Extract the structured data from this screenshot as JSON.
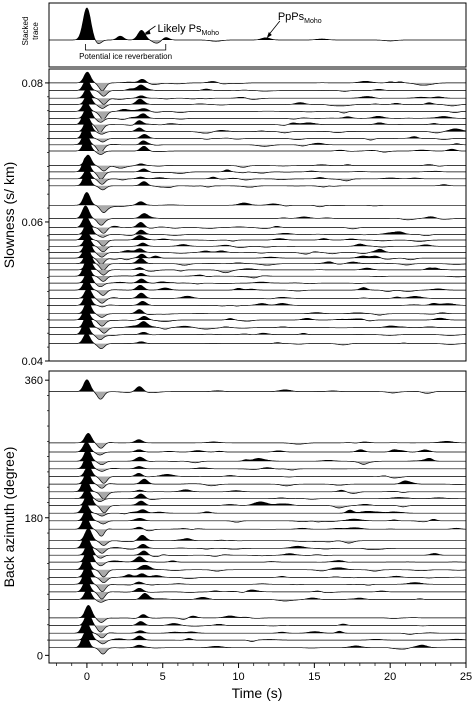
{
  "chart_data": [
    {
      "type": "line",
      "panel": "stacked",
      "ylabel_lines": [
        "Stacked",
        "trace"
      ],
      "xlim": [
        -2.5,
        25
      ],
      "annotations": {
        "likely_ps": {
          "text": "Likely Ps",
          "sub": "Moho",
          "x": 3.6
        },
        "ppps": {
          "text": "PpPs",
          "sub": "Moho",
          "x": 11.8
        },
        "ice": {
          "text": "Potential ice reverberation",
          "x_start": -0.1,
          "x_end": 5.2
        }
      },
      "wiggles": [
        {
          "t": 0.0,
          "a": 1.0,
          "w": 0.35
        },
        {
          "t": 0.75,
          "a": -0.12,
          "w": 0.3
        },
        {
          "t": 2.2,
          "a": 0.12,
          "w": 0.3
        },
        {
          "t": 3.6,
          "a": 0.3,
          "w": 0.33
        },
        {
          "t": 4.6,
          "a": -0.1,
          "w": 0.35
        },
        {
          "t": 5.2,
          "a": 0.08,
          "w": 0.3
        },
        {
          "t": 8.5,
          "a": -0.04,
          "w": 0.5
        },
        {
          "t": 11.8,
          "a": 0.07,
          "w": 0.4
        },
        {
          "t": 15.5,
          "a": 0.03,
          "w": 0.5
        },
        {
          "t": 20.0,
          "a": -0.03,
          "w": 0.5
        }
      ]
    },
    {
      "type": "line",
      "panel": "slowness",
      "ylabel": "Slowness (s/ km)",
      "ylim": [
        0.04,
        0.082
      ],
      "yticks": [
        0.04,
        0.06,
        0.08
      ],
      "ytick_labels": [
        "0.04",
        "0.06",
        "0.08"
      ],
      "xlim": [
        -2.5,
        25
      ],
      "trace_positions": [
        0.08,
        0.0789,
        0.0778,
        0.0769,
        0.0759,
        0.0749,
        0.074,
        0.073,
        0.072,
        0.0711,
        0.0702,
        0.0681,
        0.0672,
        0.0662,
        0.0652,
        0.0624,
        0.0605,
        0.0592,
        0.0582,
        0.0574,
        0.0565,
        0.0556,
        0.0548,
        0.054,
        0.0531,
        0.0522,
        0.0512,
        0.0502,
        0.049,
        0.048,
        0.0468,
        0.0459,
        0.0448,
        0.0438,
        0.0425
      ]
    },
    {
      "type": "line",
      "panel": "backazimuth",
      "ylabel": "Back azimuth (degree)",
      "ylim": [
        -10,
        372
      ],
      "yticks": [
        0,
        180,
        360
      ],
      "ytick_labels": [
        "0",
        "180",
        "360"
      ],
      "xlabel": "Time (s)",
      "xlim": [
        -2.5,
        25
      ],
      "xticks": [
        0,
        5,
        10,
        15,
        20,
        25
      ],
      "xtick_labels": [
        "0",
        "5",
        "10",
        "15",
        "20",
        "25"
      ],
      "trace_positions": [
        345,
        278,
        266,
        254,
        244,
        234,
        224,
        214,
        205,
        196,
        186,
        176,
        165,
        150,
        140,
        131,
        122,
        112,
        102,
        93,
        83,
        73,
        49,
        39,
        29,
        20,
        10
      ]
    }
  ],
  "colors": {
    "ink": "#000000",
    "negative_fill": "#a9a9a9",
    "background": "#ffffff"
  }
}
